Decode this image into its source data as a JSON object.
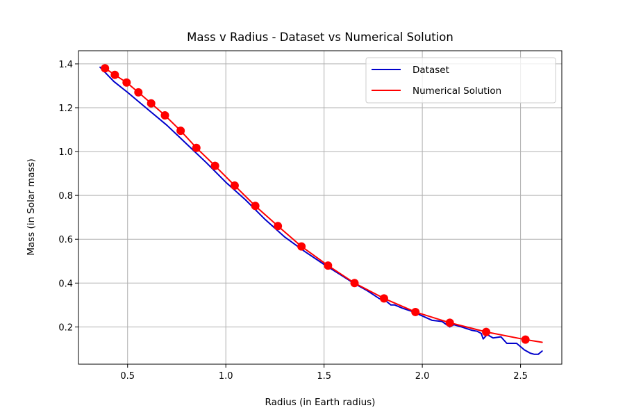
{
  "chart_data": {
    "type": "line",
    "title": "Mass v Radius - Dataset vs Numerical Solution",
    "xlabel": "Radius (in Earth radius)",
    "ylabel": "Mass (in Solar mass)",
    "xlim": [
      0.25,
      2.71
    ],
    "ylim": [
      0.03,
      1.46
    ],
    "xticks": [
      0.5,
      1.0,
      1.5,
      2.0,
      2.5
    ],
    "xtick_labels": [
      "0.5",
      "1.0",
      "1.5",
      "2.0",
      "2.5"
    ],
    "yticks": [
      0.2,
      0.4,
      0.6,
      0.8,
      1.0,
      1.2,
      1.4
    ],
    "ytick_labels": [
      "0.2",
      "0.4",
      "0.6",
      "0.8",
      "1.0",
      "1.2",
      "1.4"
    ],
    "grid": true,
    "legend_position": "top-right",
    "series": [
      {
        "name": "Dataset",
        "color": "#0000cc",
        "style": "line",
        "x": [
          0.36,
          0.43,
          0.5,
          0.6,
          0.7,
          0.8,
          0.9,
          1.0,
          1.1,
          1.2,
          1.3,
          1.4,
          1.5,
          1.58,
          1.65,
          1.72,
          1.78,
          1.82,
          1.84,
          1.86,
          1.9,
          1.95,
          2.0,
          2.05,
          2.1,
          2.14,
          2.16,
          2.2,
          2.25,
          2.28,
          2.3,
          2.31,
          2.33,
          2.36,
          2.4,
          2.43,
          2.48,
          2.52,
          2.55,
          2.57,
          2.59,
          2.61
        ],
        "y": [
          1.385,
          1.32,
          1.27,
          1.195,
          1.12,
          1.035,
          0.95,
          0.86,
          0.78,
          0.69,
          0.61,
          0.545,
          0.485,
          0.44,
          0.4,
          0.365,
          0.33,
          0.315,
          0.3,
          0.3,
          0.285,
          0.27,
          0.25,
          0.23,
          0.225,
          0.2,
          0.21,
          0.2,
          0.185,
          0.18,
          0.17,
          0.145,
          0.165,
          0.15,
          0.155,
          0.125,
          0.125,
          0.095,
          0.08,
          0.075,
          0.075,
          0.09
        ]
      },
      {
        "name": "Numerical Solution",
        "color": "#ff0000",
        "style": "line+markers",
        "x": [
          0.385,
          0.435,
          0.495,
          0.555,
          0.62,
          0.69,
          0.77,
          0.85,
          0.945,
          1.045,
          1.15,
          1.265,
          1.385,
          1.52,
          1.655,
          1.805,
          1.965,
          2.14,
          2.325,
          2.525,
          2.61
        ],
        "y": [
          1.38,
          1.35,
          1.315,
          1.27,
          1.22,
          1.165,
          1.095,
          1.017,
          0.935,
          0.845,
          0.752,
          0.66,
          0.567,
          0.48,
          0.4,
          0.33,
          0.268,
          0.219,
          0.177,
          0.142,
          0.13
        ],
        "markers": [
          true,
          true,
          true,
          true,
          true,
          true,
          true,
          true,
          true,
          true,
          true,
          true,
          true,
          true,
          true,
          true,
          true,
          true,
          true,
          true,
          false
        ]
      }
    ]
  }
}
